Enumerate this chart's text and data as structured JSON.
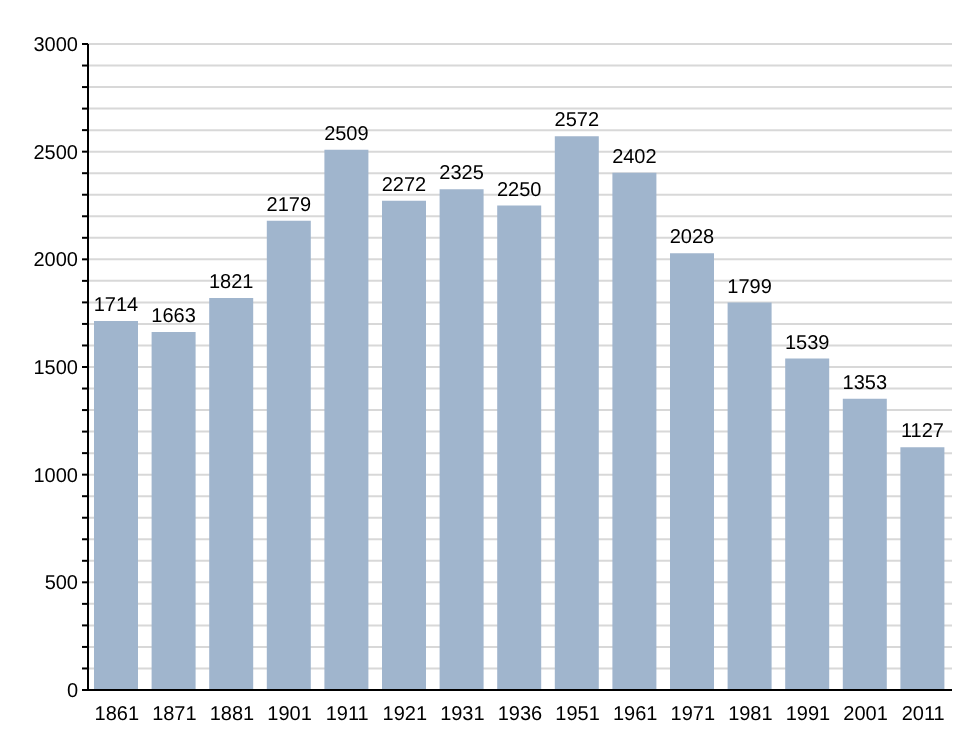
{
  "chart_data": {
    "type": "bar",
    "categories": [
      "1861",
      "1871",
      "1881",
      "1901",
      "1911",
      "1921",
      "1931",
      "1936",
      "1951",
      "1961",
      "1971",
      "1981",
      "1991",
      "2001",
      "2011"
    ],
    "values": [
      1714,
      1663,
      1821,
      2179,
      2509,
      2272,
      2325,
      2250,
      2572,
      2402,
      2028,
      1799,
      1539,
      1353,
      1127
    ],
    "color": "#a0b5cd",
    "data_labels": true,
    "grid": "y",
    "ylim": [
      0,
      3000
    ],
    "yticks": [
      0,
      {
        "value": 100,
        "label": null
      },
      {
        "value": 200,
        "label": null
      },
      {
        "value": 300,
        "label": null
      },
      {
        "value": 400,
        "label": null
      },
      500,
      {
        "value": 600,
        "label": null
      },
      {
        "value": 700,
        "label": null
      },
      {
        "value": 800,
        "label": null
      },
      {
        "value": 900,
        "label": null
      },
      1000,
      {
        "value": 1100,
        "label": null
      },
      {
        "value": 1200,
        "label": null
      },
      {
        "value": 1300,
        "label": null
      },
      {
        "value": 1400,
        "label": null
      },
      1500,
      {
        "value": 1600,
        "label": null
      },
      {
        "value": 1700,
        "label": null
      },
      {
        "value": 1800,
        "label": null
      },
      {
        "value": 1900,
        "label": null
      },
      2000,
      {
        "value": 2100,
        "label": null
      },
      {
        "value": 2200,
        "label": null
      },
      {
        "value": 2300,
        "label": null
      },
      {
        "value": 2400,
        "label": null
      },
      2500,
      {
        "value": 2600,
        "label": null
      },
      {
        "value": 2700,
        "label": null
      },
      {
        "value": 2800,
        "label": null
      },
      {
        "value": 2900,
        "label": null
      },
      3000
    ]
  }
}
